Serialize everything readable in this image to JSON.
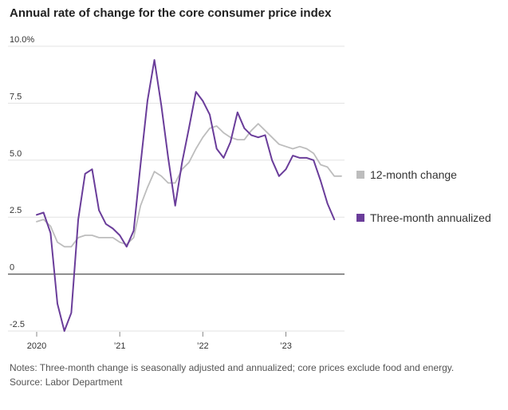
{
  "chart_data": {
    "type": "line",
    "title": "Annual rate of change for the core consumer price index",
    "xlabel": "",
    "ylabel": "",
    "ylim": [
      -2.5,
      10.0
    ],
    "xlim": [
      2020.0,
      2023.667
    ],
    "y_ticks": [
      {
        "value": 10.0,
        "label": "10.0%"
      },
      {
        "value": 7.5,
        "label": "7.5"
      },
      {
        "value": 5.0,
        "label": "5.0"
      },
      {
        "value": 2.5,
        "label": "2.5"
      },
      {
        "value": 0,
        "label": "0"
      },
      {
        "value": -2.5,
        "label": "-2.5"
      }
    ],
    "x_ticks": [
      {
        "value": 2020,
        "label": "2020"
      },
      {
        "value": 2021,
        "label": "’21"
      },
      {
        "value": 2022,
        "label": "’22"
      },
      {
        "value": 2023,
        "label": "’23"
      }
    ],
    "grid": true,
    "legend_position": "right",
    "series": [
      {
        "name": "12-month change",
        "color": "#bdbdbd",
        "x": [
          2020.0,
          2020.083,
          2020.167,
          2020.25,
          2020.333,
          2020.417,
          2020.5,
          2020.583,
          2020.667,
          2020.75,
          2020.833,
          2020.917,
          2021.0,
          2021.083,
          2021.167,
          2021.25,
          2021.333,
          2021.417,
          2021.5,
          2021.583,
          2021.667,
          2021.75,
          2021.833,
          2021.917,
          2022.0,
          2022.083,
          2022.167,
          2022.25,
          2022.333,
          2022.417,
          2022.5,
          2022.583,
          2022.667,
          2022.75,
          2022.833,
          2022.917,
          2023.0,
          2023.083,
          2023.167,
          2023.25,
          2023.333,
          2023.417,
          2023.5,
          2023.583,
          2023.667
        ],
        "values": [
          2.3,
          2.4,
          2.1,
          1.4,
          1.2,
          1.2,
          1.6,
          1.7,
          1.7,
          1.6,
          1.6,
          1.6,
          1.4,
          1.3,
          1.6,
          3.0,
          3.8,
          4.5,
          4.3,
          4.0,
          4.0,
          4.6,
          4.9,
          5.5,
          6.0,
          6.4,
          6.5,
          6.2,
          6.0,
          5.9,
          5.9,
          6.3,
          6.6,
          6.3,
          6.0,
          5.7,
          5.6,
          5.5,
          5.6,
          5.5,
          5.3,
          4.8,
          4.7,
          4.3,
          4.3
        ]
      },
      {
        "name": "Three-month annualized",
        "color": "#6a3d9a",
        "x": [
          2020.0,
          2020.083,
          2020.167,
          2020.25,
          2020.333,
          2020.417,
          2020.5,
          2020.583,
          2020.667,
          2020.75,
          2020.833,
          2020.917,
          2021.0,
          2021.083,
          2021.167,
          2021.25,
          2021.333,
          2021.417,
          2021.5,
          2021.583,
          2021.667,
          2021.75,
          2021.833,
          2021.917,
          2022.0,
          2022.083,
          2022.167,
          2022.25,
          2022.333,
          2022.417,
          2022.5,
          2022.583,
          2022.667,
          2022.75,
          2022.833,
          2022.917,
          2023.0,
          2023.083,
          2023.167,
          2023.25,
          2023.333,
          2023.417,
          2023.5,
          2023.583
        ],
        "values": [
          2.6,
          2.7,
          1.8,
          -1.3,
          -2.5,
          -1.7,
          2.4,
          4.4,
          4.6,
          2.8,
          2.2,
          2.0,
          1.7,
          1.2,
          1.9,
          4.8,
          7.6,
          9.4,
          7.4,
          5.1,
          3.0,
          4.9,
          6.4,
          8.0,
          7.6,
          7.0,
          5.5,
          5.1,
          5.8,
          7.1,
          6.4,
          6.1,
          6.0,
          6.1,
          5.0,
          4.3,
          4.6,
          5.2,
          5.1,
          5.1,
          5.0,
          4.1,
          3.1,
          2.4
        ]
      }
    ]
  },
  "notes": "Notes: Three-month change is seasonally adjusted and annualized; core prices exclude food and energy.",
  "source": "Source: Labor Department"
}
